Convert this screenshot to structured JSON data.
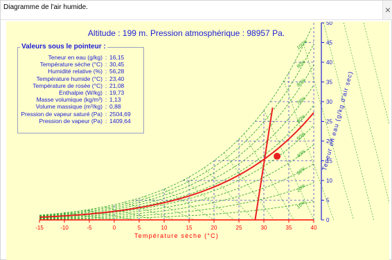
{
  "window": {
    "title": "Diagramme de l'air humide."
  },
  "chart_header": "Altitude : 199 m. Pression atmosphérique : 98957 Pa.",
  "info_panel": {
    "title": "Valeurs sous le pointeur :",
    "rows": [
      {
        "label": "Teneur en eau (g/kg)",
        "value": "16,15"
      },
      {
        "label": "Température sèche (°C)",
        "value": "30,45"
      },
      {
        "label": "Humidité relative (%)",
        "value": "56,28"
      },
      {
        "label": "Température humide (°C)",
        "value": "23,40"
      },
      {
        "label": "Température de rosée (°C)",
        "value": "21,08"
      },
      {
        "label": "Enthalpie (W/kg)",
        "value": "19,73"
      },
      {
        "label": "Masse volumique (kg/m³)",
        "value": "1,13"
      },
      {
        "label": "Volume massique (m³/kg)",
        "value": "0,88"
      },
      {
        "label": "Pression de vapeur saturé (Pa)",
        "value": "2504,69"
      },
      {
        "label": "Pression de vapeur (Pa)",
        "value": "1409,64"
      }
    ]
  },
  "chart_data": {
    "type": "line",
    "title": "Altitude : 199 m. Pression atmosphérique : 98957 Pa.",
    "xlabel": "Température sèche (°C)",
    "ylabel": "Teneur en eau (g/kg d'air sec)",
    "xlim": [
      -15,
      40
    ],
    "ylim": [
      0,
      50
    ],
    "x_ticks": [
      "-15",
      "-10",
      "-5",
      "0",
      "5",
      "10",
      "15",
      "20",
      "25",
      "30",
      "35",
      "40"
    ],
    "y_ticks": [
      "0",
      "5",
      "10",
      "15",
      "20",
      "25",
      "30",
      "35",
      "40",
      "45",
      "50"
    ],
    "rh_labels": [
      "10%",
      "20%",
      "30%",
      "40%",
      "50%",
      "60%",
      "70%",
      "80%",
      "90%",
      "100%"
    ],
    "grid": true,
    "highlight_rh_percent": 56.28,
    "pointer": {
      "x": 30.45,
      "y": 16.15
    },
    "colors": {
      "background": "#ffffcc",
      "text": "#1c1cd6",
      "axis": "#ff0000",
      "rh_curves": "#22a022",
      "grid": "#4a4ad0",
      "highlight": "#e82020"
    }
  }
}
